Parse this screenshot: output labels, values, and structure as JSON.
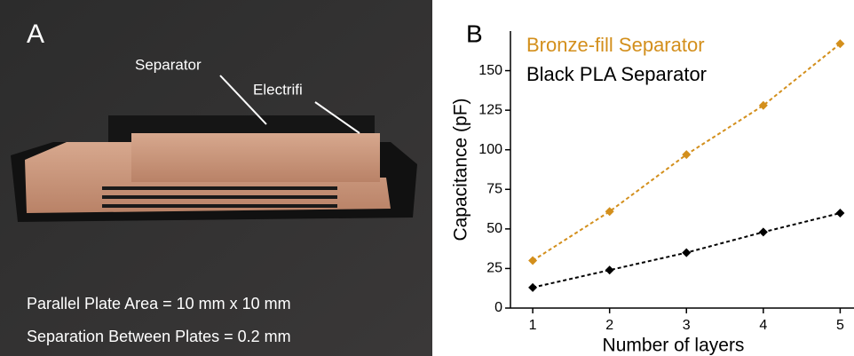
{
  "photo": {
    "panel_label": "A",
    "callouts": [
      "Separator",
      "Electrifi"
    ],
    "captions": [
      "Parallel Plate Area = 10 mm x 10 mm",
      "Separation Between Plates = 0.2 mm"
    ]
  },
  "chart_data": {
    "type": "line",
    "panel_label": "B",
    "x_label": "Number of layers",
    "y_label": "Capacitance (pF)",
    "x": [
      1,
      2,
      3,
      4,
      5
    ],
    "series": [
      {
        "name": "Bronze-fill Separator",
        "color": "#d38f1c",
        "values": [
          30,
          61,
          97,
          128,
          167
        ]
      },
      {
        "name": "Black PLA Separator",
        "color": "#000000",
        "values": [
          13,
          24,
          35,
          48,
          60
        ]
      }
    ],
    "xlim": [
      0.71,
      5.18
    ],
    "ylim": [
      0,
      175
    ],
    "xticks": [
      1,
      2,
      3,
      4,
      5
    ],
    "yticks": [
      0,
      25,
      50,
      75,
      100,
      125,
      150
    ]
  }
}
